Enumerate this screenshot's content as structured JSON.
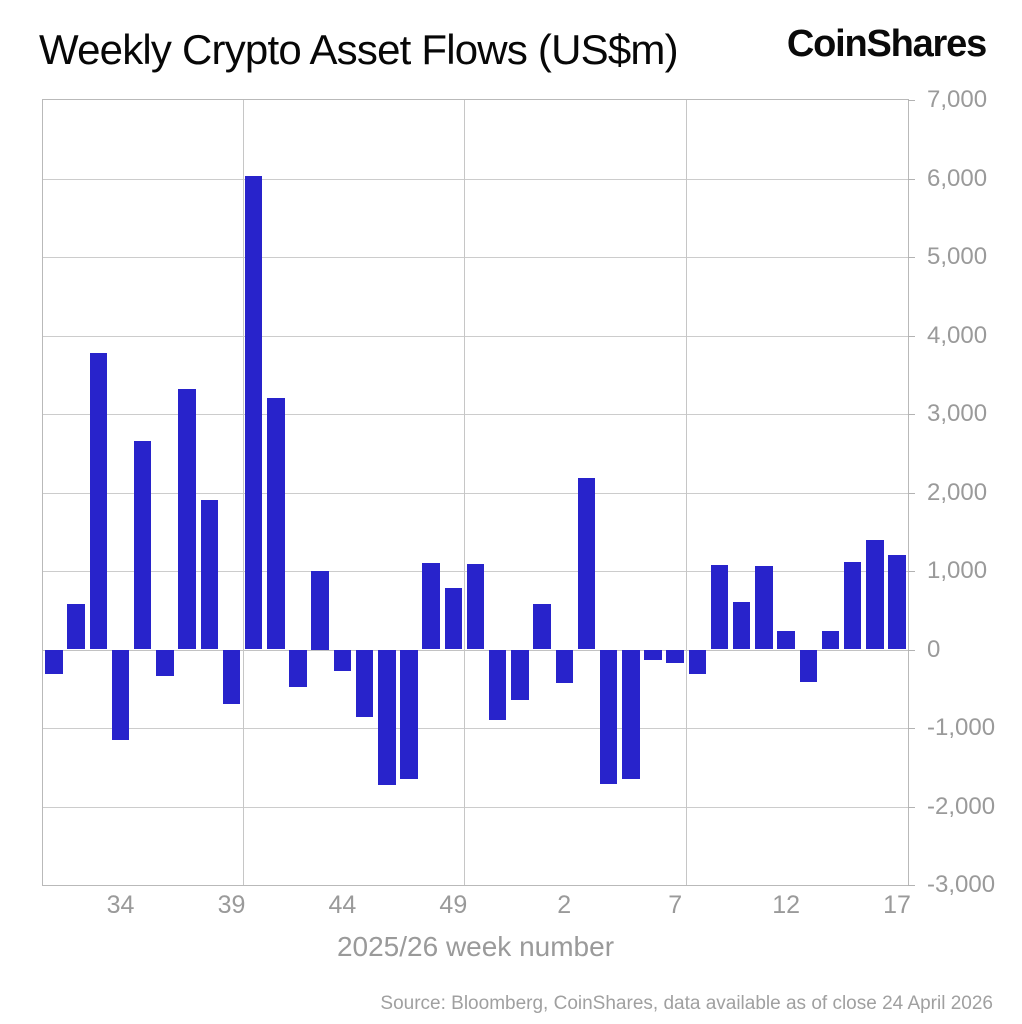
{
  "header": {
    "title": "Weekly Crypto Asset Flows (US$m)",
    "logo": "CoinShares"
  },
  "chart_data": {
    "type": "bar",
    "title": "Weekly Crypto Asset Flows (US$m)",
    "xlabel": "2025/26 week number",
    "ylabel": "",
    "ylim": [
      -3000,
      7000
    ],
    "grid": true,
    "bar_color": "#2823cb",
    "categories": [
      "31",
      "32",
      "33",
      "34",
      "35",
      "36",
      "37",
      "38",
      "39",
      "40",
      "41",
      "42",
      "43",
      "44",
      "45",
      "46",
      "47",
      "48",
      "49",
      "50",
      "51",
      "52",
      "1",
      "2",
      "3",
      "4",
      "5",
      "6",
      "7",
      "8",
      "9",
      "10",
      "11",
      "12",
      "13",
      "14",
      "15",
      "16",
      "17"
    ],
    "values": [
      -310,
      580,
      3780,
      -1150,
      2660,
      -340,
      3320,
      1900,
      -690,
      6030,
      3200,
      -480,
      1000,
      -270,
      -860,
      -1720,
      -1650,
      1100,
      780,
      1090,
      -900,
      -640,
      580,
      -430,
      2180,
      -1710,
      -1650,
      -140,
      -170,
      -310,
      1080,
      600,
      1060,
      230,
      -410,
      230,
      1120,
      1400,
      1200
    ],
    "series_name": "Weekly crypto asset flows (US$m)",
    "y_ticks": [
      {
        "value": 7000,
        "label": "7,000"
      },
      {
        "value": 6000,
        "label": "6,000"
      },
      {
        "value": 5000,
        "label": "5,000"
      },
      {
        "value": 4000,
        "label": "4,000"
      },
      {
        "value": 3000,
        "label": "3,000"
      },
      {
        "value": 2000,
        "label": "2,000"
      },
      {
        "value": 1000,
        "label": "1,000"
      },
      {
        "value": 0,
        "label": "0"
      },
      {
        "value": -1000,
        "label": "-1,000"
      },
      {
        "value": -2000,
        "label": "-2,000"
      },
      {
        "value": -3000,
        "label": "-3,000"
      }
    ],
    "x_ticks": [
      {
        "index": 3,
        "label": "34"
      },
      {
        "index": 8,
        "label": "39"
      },
      {
        "index": 13,
        "label": "44"
      },
      {
        "index": 18,
        "label": "49"
      },
      {
        "index": 23,
        "label": "2"
      },
      {
        "index": 28,
        "label": "7"
      },
      {
        "index": 33,
        "label": "12"
      },
      {
        "index": 38,
        "label": "17"
      }
    ],
    "vertical_gridline_boundaries": [
      8.5,
      18.5,
      28.5
    ],
    "legend_position": "none"
  },
  "footer": {
    "source": "Source: Bloomberg, CoinShares, data available as of close 24 April 2026"
  }
}
